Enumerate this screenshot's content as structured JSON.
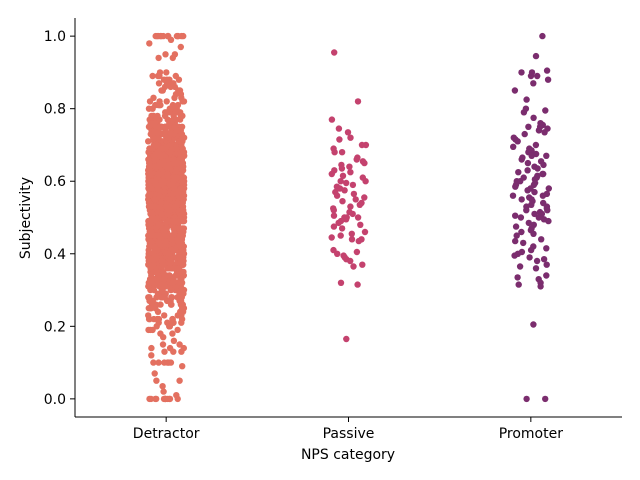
{
  "chart_data": {
    "type": "scatter",
    "subtype": "strip",
    "title": "",
    "xlabel": "NPS category",
    "ylabel": "Subjectivity",
    "ylim": [
      -0.05,
      1.05
    ],
    "yticks": [
      "0.0",
      "0.2",
      "0.4",
      "0.6",
      "0.8",
      "1.0"
    ],
    "grid": false,
    "legend": "none",
    "categories": [
      "Detractor",
      "Passive",
      "Promoter"
    ],
    "series": [
      {
        "category": "Detractor",
        "color": "#e37060",
        "n_points": 1500,
        "distribution": {
          "mean": 0.53,
          "spread": 0.15,
          "min": 0.0,
          "max": 1.0
        },
        "notable_values": [
          0.0,
          0.0,
          0.0,
          0.0,
          0.0,
          0.0,
          0.0,
          0.0,
          0.0,
          0.0,
          0.0,
          0.0,
          0.05,
          0.035,
          0.05,
          0.07,
          0.1,
          0.1,
          0.1,
          0.12,
          0.13,
          0.13,
          1.0,
          1.0,
          1.0,
          1.0,
          1.0,
          1.0,
          1.0,
          1.0,
          1.0,
          1.0,
          1.0,
          1.0,
          0.99,
          0.98,
          0.97,
          0.95,
          0.94
        ]
      },
      {
        "category": "Passive",
        "color": "#c4426e",
        "values": [
          0.955,
          0.82,
          0.77,
          0.745,
          0.735,
          0.72,
          0.715,
          0.7,
          0.7,
          0.69,
          0.68,
          0.68,
          0.665,
          0.66,
          0.655,
          0.65,
          0.645,
          0.64,
          0.635,
          0.63,
          0.625,
          0.62,
          0.615,
          0.61,
          0.6,
          0.6,
          0.595,
          0.59,
          0.585,
          0.58,
          0.575,
          0.57,
          0.565,
          0.56,
          0.555,
          0.55,
          0.545,
          0.54,
          0.535,
          0.53,
          0.525,
          0.52,
          0.515,
          0.51,
          0.505,
          0.5,
          0.5,
          0.5,
          0.495,
          0.49,
          0.485,
          0.48,
          0.475,
          0.47,
          0.46,
          0.455,
          0.45,
          0.445,
          0.44,
          0.44,
          0.435,
          0.41,
          0.405,
          0.4,
          0.395,
          0.39,
          0.385,
          0.38,
          0.37,
          0.365,
          0.32,
          0.315,
          0.165
        ]
      },
      {
        "category": "Promoter",
        "color": "#7b2d6e",
        "values": [
          1.0,
          0.945,
          0.905,
          0.9,
          0.9,
          0.89,
          0.89,
          0.88,
          0.87,
          0.85,
          0.825,
          0.8,
          0.795,
          0.79,
          0.775,
          0.76,
          0.755,
          0.75,
          0.75,
          0.745,
          0.74,
          0.735,
          0.73,
          0.72,
          0.715,
          0.71,
          0.7,
          0.695,
          0.69,
          0.685,
          0.68,
          0.675,
          0.67,
          0.67,
          0.665,
          0.66,
          0.655,
          0.65,
          0.645,
          0.64,
          0.635,
          0.63,
          0.625,
          0.62,
          0.62,
          0.615,
          0.61,
          0.61,
          0.605,
          0.6,
          0.6,
          0.595,
          0.59,
          0.59,
          0.585,
          0.58,
          0.58,
          0.575,
          0.57,
          0.565,
          0.56,
          0.56,
          0.555,
          0.55,
          0.55,
          0.545,
          0.54,
          0.535,
          0.53,
          0.53,
          0.525,
          0.52,
          0.52,
          0.515,
          0.51,
          0.51,
          0.505,
          0.5,
          0.5,
          0.495,
          0.49,
          0.485,
          0.48,
          0.475,
          0.47,
          0.465,
          0.46,
          0.455,
          0.45,
          0.44,
          0.435,
          0.43,
          0.42,
          0.415,
          0.41,
          0.405,
          0.4,
          0.395,
          0.39,
          0.385,
          0.38,
          0.37,
          0.365,
          0.36,
          0.34,
          0.335,
          0.33,
          0.32,
          0.315,
          0.31,
          0.205,
          0.0,
          0.0
        ]
      }
    ]
  }
}
